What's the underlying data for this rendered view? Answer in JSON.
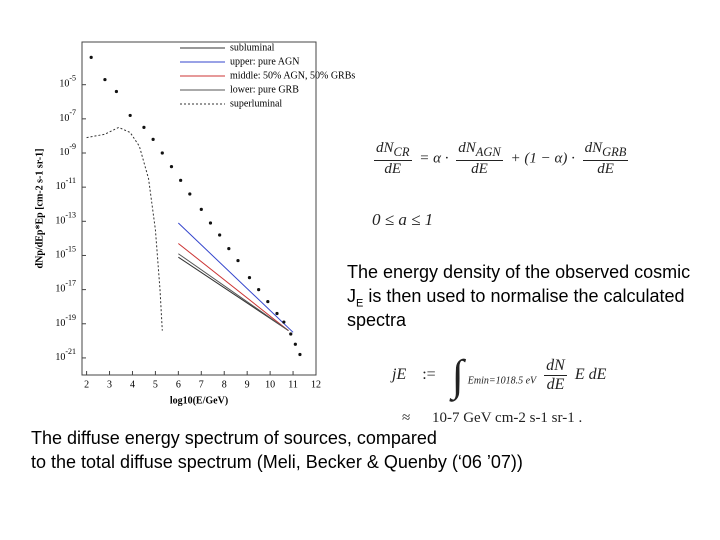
{
  "chart_data": {
    "type": "line",
    "x_label": "log10(E/GeV)",
    "y_label": "dNp/dEp*Ep [cm-2 s-1 sr-1]",
    "xlim": [
      1.8,
      12
    ],
    "ylim": [
      -22,
      -2.5
    ],
    "xticks": [
      2,
      3,
      4,
      5,
      6,
      7,
      8,
      9,
      10,
      11,
      12
    ],
    "yticks": [
      {
        "value": -5,
        "label": "10-5"
      },
      {
        "value": -7,
        "label": "10-7"
      },
      {
        "value": -9,
        "label": "10-9"
      },
      {
        "value": -11,
        "label": "10-11"
      },
      {
        "value": -13,
        "label": "10-13"
      },
      {
        "value": -15,
        "label": "10-15"
      },
      {
        "value": -17,
        "label": "10-17"
      },
      {
        "value": -19,
        "label": "10-19"
      },
      {
        "value": -21,
        "label": "10-21"
      }
    ],
    "series": [
      {
        "name": "subluminal",
        "color": "#333333",
        "dash": "none",
        "x": [
          6,
          10.8
        ],
        "values": [
          -15.1,
          -19.4
        ]
      },
      {
        "name": "upper: pure AGN",
        "color": "#3344cc",
        "dash": "none",
        "x": [
          6,
          11
        ],
        "values": [
          -13.1,
          -19.5
        ]
      },
      {
        "name": "middle: 50% AGN, 50% GRBs",
        "color": "#cc3333",
        "dash": "none",
        "x": [
          6,
          10.8
        ],
        "values": [
          -14.3,
          -19.4
        ]
      },
      {
        "name": "lower: pure GRB",
        "color": "#555555",
        "dash": "none",
        "x": [
          6,
          10.8
        ],
        "values": [
          -14.9,
          -19.4
        ]
      },
      {
        "name": "superluminal",
        "color": "#333333",
        "dash": "2 2",
        "x": [
          2,
          2.8,
          3.4,
          3.9,
          4.3,
          4.7,
          5.0,
          5.2,
          5.3
        ],
        "values": [
          -8.1,
          -7.9,
          -7.5,
          -7.8,
          -8.6,
          -10.5,
          -13.5,
          -17,
          -19.4
        ]
      }
    ],
    "points": {
      "color": "#111111",
      "x": [
        2.2,
        2.8,
        3.3,
        3.9,
        4.5,
        4.9,
        5.3,
        5.7,
        6.1,
        6.5,
        7.0,
        7.4,
        7.8,
        8.2,
        8.6,
        9.1,
        9.5,
        9.9,
        10.3,
        10.6,
        10.9,
        11.1,
        11.3
      ],
      "values": [
        -3.4,
        -4.7,
        -5.4,
        -6.8,
        -7.5,
        -8.2,
        -9.0,
        -9.8,
        -10.6,
        -11.4,
        -12.3,
        -13.1,
        -13.8,
        -14.6,
        -15.3,
        -16.3,
        -17.0,
        -17.7,
        -18.4,
        -18.9,
        -19.6,
        -20.2,
        -20.8
      ]
    }
  },
  "slide": {
    "eq1": {
      "lhs_num": "dN",
      "lhs_num_sub": "CR",
      "den": "dE",
      "eq": "=",
      "alpha": "α ·",
      "agn_num": "dN",
      "agn_sub": "AGN",
      "plus": "+ (1 − α) ·",
      "grb_num": "dN",
      "grb_sub": "GRB"
    },
    "eq2": "0 ≤ a ≤ 1",
    "para": [
      "The energy density of the observed cosmic",
      "is then used to normalise the calculated",
      "spectra"
    ],
    "j": "J",
    "j_sub": "E",
    "eq3": {
      "lhs": "jE",
      "def": ":=",
      "lower": "Emin=1018.5 eV",
      "num": "dN",
      "den": "dE",
      "rest": "E dE",
      "approx": "≈",
      "value": "10-7 GeV cm-2 s-1 sr-1",
      "dot": "."
    },
    "caption": [
      "The diffuse energy spectrum of sources, compared",
      "to the total diffuse spectrum (Meli, Becker & Quenby (‘06 ’07))"
    ]
  }
}
